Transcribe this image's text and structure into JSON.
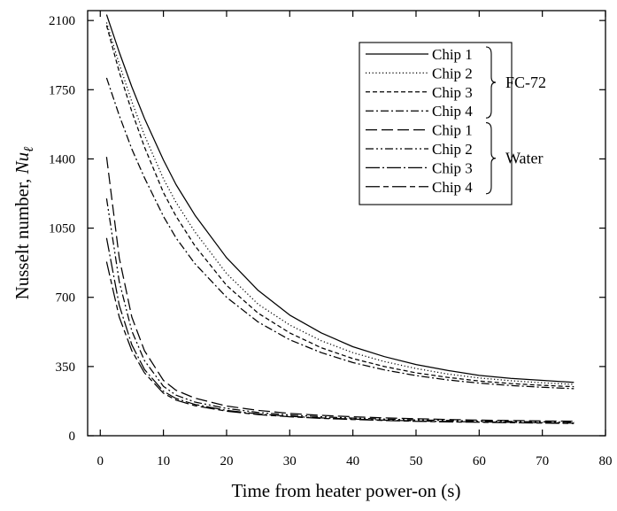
{
  "chart_data": {
    "type": "line",
    "xlabel": "Time from heater power-on (s)",
    "ylabel": "Nusselt number, Nu",
    "ylabel_symbol": "Nu",
    "ylabel_subscript": "ℓ",
    "xlim": [
      -2,
      80
    ],
    "ylim": [
      0,
      2150
    ],
    "xticks": [
      0,
      10,
      20,
      30,
      40,
      50,
      60,
      70,
      80
    ],
    "yticks": [
      0,
      350,
      700,
      1050,
      1400,
      1750,
      2100
    ],
    "grid": false,
    "legend_position": "top-right",
    "legend_groups": [
      {
        "label": "FC-72",
        "entries": [
          "Chip 1",
          "Chip 2",
          "Chip 3",
          "Chip 4"
        ]
      },
      {
        "label": "Water",
        "entries": [
          "Chip 1",
          "Chip 2",
          "Chip 3",
          "Chip 4"
        ]
      }
    ],
    "x": [
      1,
      3,
      5,
      7,
      10,
      12,
      15,
      20,
      25,
      30,
      35,
      40,
      45,
      50,
      55,
      60,
      65,
      70,
      75
    ],
    "series": [
      {
        "name": "Chip 1",
        "group": "FC-72",
        "dash": "solid",
        "values": [
          2130,
          1940,
          1765,
          1605,
          1395,
          1270,
          1115,
          900,
          735,
          610,
          520,
          450,
          400,
          360,
          330,
          305,
          290,
          280,
          270
        ]
      },
      {
        "name": "Chip 2",
        "group": "FC-72",
        "dash": "dotted",
        "values": [
          2090,
          1880,
          1690,
          1520,
          1300,
          1180,
          1030,
          820,
          665,
          560,
          480,
          420,
          375,
          340,
          312,
          292,
          278,
          268,
          260
        ]
      },
      {
        "name": "Chip 3",
        "group": "FC-72",
        "dash": "short-dash",
        "values": [
          2075,
          1840,
          1640,
          1460,
          1230,
          1110,
          960,
          760,
          620,
          520,
          445,
          390,
          350,
          318,
          295,
          277,
          264,
          255,
          248
        ]
      },
      {
        "name": "Chip 4",
        "group": "FC-72",
        "dash": "dash-dot",
        "values": [
          1810,
          1620,
          1450,
          1305,
          1110,
          1000,
          870,
          700,
          575,
          485,
          420,
          370,
          333,
          304,
          282,
          266,
          254,
          245,
          238
        ]
      },
      {
        "name": "Chip 1",
        "group": "Water",
        "dash": "long-dash",
        "values": [
          1410,
          900,
          600,
          430,
          280,
          230,
          190,
          150,
          128,
          113,
          103,
          96,
          90,
          86,
          82,
          79,
          77,
          75,
          73
        ]
      },
      {
        "name": "Chip 2",
        "group": "Water",
        "dash": "dash-dot-dot",
        "values": [
          1200,
          780,
          530,
          380,
          250,
          205,
          170,
          138,
          118,
          105,
          96,
          89,
          84,
          80,
          77,
          74,
          72,
          70,
          68
        ]
      },
      {
        "name": "Chip 3",
        "group": "Water",
        "dash": "long-dash-dot",
        "values": [
          1000,
          660,
          460,
          335,
          225,
          188,
          158,
          128,
          110,
          98,
          90,
          84,
          79,
          75,
          72,
          70,
          68,
          66,
          64
        ]
      },
      {
        "name": "Chip 4",
        "group": "Water",
        "dash": "long-short",
        "values": [
          880,
          600,
          430,
          318,
          215,
          180,
          152,
          124,
          107,
          96,
          88,
          82,
          77,
          73,
          70,
          68,
          66,
          64,
          62
        ]
      }
    ]
  }
}
